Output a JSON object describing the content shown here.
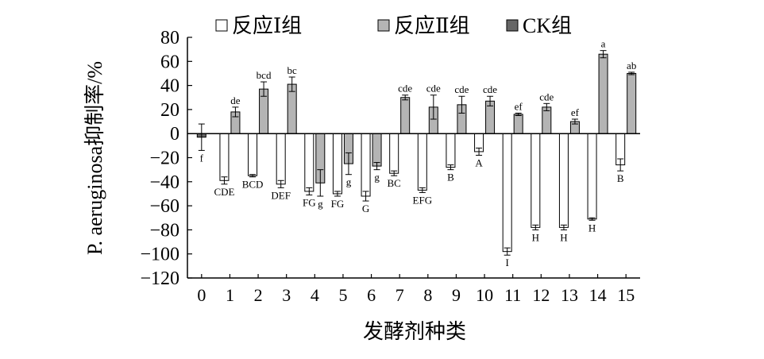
{
  "chart_data": {
    "type": "bar",
    "xlabel": "发酵剂种类",
    "ylabel": "P. aeruginosa抑制率/%",
    "ylim": [
      -120,
      80
    ],
    "yticks": [
      80,
      60,
      40,
      20,
      0,
      -20,
      -40,
      -60,
      -80,
      -100,
      -120
    ],
    "categories": [
      "0",
      "1",
      "2",
      "3",
      "4",
      "5",
      "6",
      "7",
      "8",
      "9",
      "10",
      "11",
      "12",
      "13",
      "14",
      "15"
    ],
    "legend_position": "top",
    "series": [
      {
        "name": "反应Ⅰ组",
        "color": "#ffffff",
        "values": [
          null,
          -39,
          -35,
          -42,
          -48,
          -50,
          -52,
          -33,
          -47,
          -28,
          -15,
          -98,
          -78,
          -78,
          -71,
          -26
        ],
        "errors": [
          null,
          3,
          1,
          3,
          3,
          2,
          4,
          2,
          2,
          2,
          3,
          3,
          2,
          2,
          1,
          5
        ],
        "labels": [
          null,
          "CDE",
          "BCD",
          "DEF",
          "FG",
          "FG",
          "G",
          "BC",
          "EFG",
          "B",
          "A",
          "I",
          "H",
          "H",
          "H",
          "B"
        ]
      },
      {
        "name": "反应Ⅱ组",
        "color": "#b4b4b4",
        "values": [
          null,
          18,
          37,
          41,
          -41,
          -25,
          -27,
          30,
          22,
          24,
          27,
          16,
          22,
          10,
          66,
          50
        ],
        "errors": [
          null,
          4,
          6,
          6,
          11,
          9,
          3,
          2,
          10,
          7,
          4,
          1,
          3,
          2,
          3,
          1
        ],
        "labels": [
          null,
          "de",
          "bcd",
          "bc",
          "g",
          "g",
          "g",
          "cde",
          "cde",
          "cde",
          "cde",
          "ef",
          "cde",
          "ef",
          "a",
          "ab"
        ]
      },
      {
        "name": "CK组",
        "color": "#666666",
        "values": [
          -3,
          null,
          null,
          null,
          null,
          null,
          null,
          null,
          null,
          null,
          null,
          null,
          null,
          null,
          null,
          null
        ],
        "errors": [
          11,
          null,
          null,
          null,
          null,
          null,
          null,
          null,
          null,
          null,
          null,
          null,
          null,
          null,
          null,
          null
        ],
        "labels": [
          "f",
          null,
          null,
          null,
          null,
          null,
          null,
          null,
          null,
          null,
          null,
          null,
          null,
          null,
          null,
          null
        ]
      }
    ]
  }
}
